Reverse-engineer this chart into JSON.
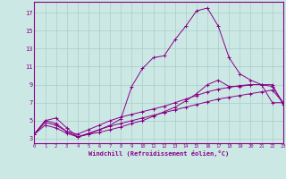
{
  "xlabel": "Windchill (Refroidissement éolien,°C)",
  "background_color": "#cce8e4",
  "grid_color": "#aaccc8",
  "line_color": "#880088",
  "x_ticks": [
    0,
    1,
    2,
    3,
    4,
    5,
    6,
    7,
    8,
    9,
    10,
    11,
    12,
    13,
    14,
    15,
    16,
    17,
    18,
    19,
    20,
    21,
    22,
    23
  ],
  "y_ticks": [
    3,
    5,
    7,
    9,
    11,
    13,
    15,
    17
  ],
  "xlim": [
    0,
    23
  ],
  "ylim": [
    2.5,
    18.2
  ],
  "series": [
    [
      3.5,
      5.0,
      4.7,
      3.8,
      3.2,
      3.5,
      3.7,
      4.0,
      4.3,
      4.7,
      5.0,
      5.5,
      6.0,
      6.5,
      7.2,
      8.0,
      9.0,
      9.5,
      8.8,
      8.8,
      9.0,
      9.0,
      9.0,
      6.8
    ],
    [
      3.5,
      4.8,
      4.5,
      3.8,
      3.5,
      4.0,
      4.5,
      5.0,
      5.4,
      5.7,
      6.0,
      6.3,
      6.6,
      7.0,
      7.4,
      7.8,
      8.2,
      8.5,
      8.7,
      8.9,
      9.0,
      9.0,
      8.8,
      7.0
    ],
    [
      3.5,
      4.5,
      4.2,
      3.6,
      3.2,
      3.6,
      4.0,
      4.4,
      4.7,
      5.0,
      5.3,
      5.6,
      5.9,
      6.2,
      6.5,
      6.8,
      7.1,
      7.4,
      7.6,
      7.8,
      8.0,
      8.2,
      8.4,
      7.0
    ],
    [
      3.5,
      5.0,
      5.3,
      4.2,
      3.2,
      3.5,
      4.0,
      4.5,
      5.2,
      8.8,
      10.8,
      12.0,
      12.2,
      14.0,
      15.5,
      17.2,
      17.5,
      15.5,
      12.0,
      10.2,
      9.5,
      9.0,
      7.0,
      7.0
    ]
  ]
}
